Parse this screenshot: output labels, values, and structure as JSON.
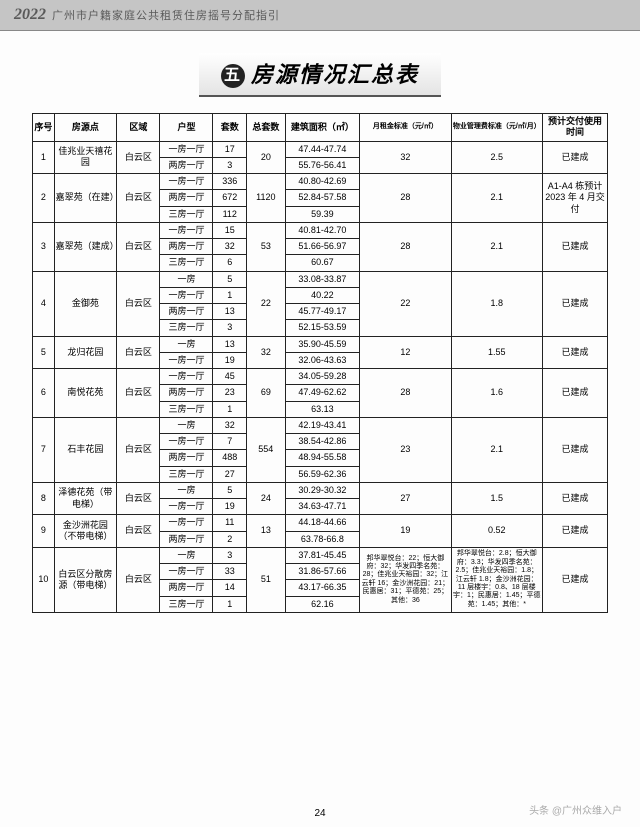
{
  "header": {
    "year": "2022",
    "text": "广州市户籍家庭公共租赁住房摇号分配指引"
  },
  "title": {
    "circle": "五",
    "text": "房源情况汇总表"
  },
  "columns": [
    "序号",
    "房源点",
    "区域",
    "户型",
    "套数",
    "总套数",
    "建筑面积（㎡）",
    "月租金标准（元/㎡）",
    "物业管理费标准（元/㎡/月）",
    "预计交付使用时间"
  ],
  "rows": [
    {
      "idx": "1",
      "loc": "佳兆业天禧花园",
      "area": "白云区",
      "types": [
        {
          "t": "一房一厅",
          "c": "17",
          "s": "47.44-47.74"
        },
        {
          "t": "两房一厅",
          "c": "3",
          "s": "55.76-56.41"
        }
      ],
      "total": "20",
      "rent": "32",
      "fee": "2.5",
      "time": "已建成"
    },
    {
      "idx": "2",
      "loc": "嘉翠苑（在建）",
      "area": "白云区",
      "types": [
        {
          "t": "一房一厅",
          "c": "336",
          "s": "40.80-42.69"
        },
        {
          "t": "两房一厅",
          "c": "672",
          "s": "52.84-57.58"
        },
        {
          "t": "三房一厅",
          "c": "112",
          "s": "59.39"
        }
      ],
      "total": "1120",
      "rent": "28",
      "fee": "2.1",
      "time": "A1-A4 栋预计 2023 年 4 月交付"
    },
    {
      "idx": "3",
      "loc": "嘉翠苑（建成）",
      "area": "白云区",
      "types": [
        {
          "t": "一房一厅",
          "c": "15",
          "s": "40.81-42.70"
        },
        {
          "t": "两房一厅",
          "c": "32",
          "s": "51.66-56.97"
        },
        {
          "t": "三房一厅",
          "c": "6",
          "s": "60.67"
        }
      ],
      "total": "53",
      "rent": "28",
      "fee": "2.1",
      "time": "已建成"
    },
    {
      "idx": "4",
      "loc": "金御苑",
      "area": "白云区",
      "types": [
        {
          "t": "一房",
          "c": "5",
          "s": "33.08-33.87"
        },
        {
          "t": "一房一厅",
          "c": "1",
          "s": "40.22"
        },
        {
          "t": "两房一厅",
          "c": "13",
          "s": "45.77-49.17"
        },
        {
          "t": "三房一厅",
          "c": "3",
          "s": "52.15-53.59"
        }
      ],
      "total": "22",
      "rent": "22",
      "fee": "1.8",
      "time": "已建成"
    },
    {
      "idx": "5",
      "loc": "龙归花园",
      "area": "白云区",
      "types": [
        {
          "t": "一房",
          "c": "13",
          "s": "35.90-45.59"
        },
        {
          "t": "一房一厅",
          "c": "19",
          "s": "32.06-43.63"
        }
      ],
      "total": "32",
      "rent": "12",
      "fee": "1.55",
      "time": "已建成"
    },
    {
      "idx": "6",
      "loc": "南悦花苑",
      "area": "白云区",
      "types": [
        {
          "t": "一房一厅",
          "c": "45",
          "s": "34.05-59.28"
        },
        {
          "t": "两房一厅",
          "c": "23",
          "s": "47.49-62.62"
        },
        {
          "t": "三房一厅",
          "c": "1",
          "s": "63.13"
        }
      ],
      "total": "69",
      "rent": "28",
      "fee": "1.6",
      "time": "已建成"
    },
    {
      "idx": "7",
      "loc": "石丰花园",
      "area": "白云区",
      "types": [
        {
          "t": "一房",
          "c": "32",
          "s": "42.19-43.41"
        },
        {
          "t": "一房一厅",
          "c": "7",
          "s": "38.54-42.86"
        },
        {
          "t": "两房一厅",
          "c": "488",
          "s": "48.94-55.58"
        },
        {
          "t": "三房一厅",
          "c": "27",
          "s": "56.59-62.36"
        }
      ],
      "total": "554",
      "rent": "23",
      "fee": "2.1",
      "time": "已建成"
    },
    {
      "idx": "8",
      "loc": "泽德花苑（带电梯）",
      "area": "白云区",
      "types": [
        {
          "t": "一房",
          "c": "5",
          "s": "30.29-30.32"
        },
        {
          "t": "一房一厅",
          "c": "19",
          "s": "34.63-47.71"
        }
      ],
      "total": "24",
      "rent": "27",
      "fee": "1.5",
      "time": "已建成"
    },
    {
      "idx": "9",
      "loc": "金沙洲花园（不带电梯）",
      "area": "白云区",
      "types": [
        {
          "t": "一房一厅",
          "c": "11",
          "s": "44.18-44.66"
        },
        {
          "t": "两房一厅",
          "c": "2",
          "s": "63.78-66.8"
        }
      ],
      "total": "13",
      "rent": "19",
      "fee": "0.52",
      "time": "已建成"
    },
    {
      "idx": "10",
      "loc": "白云区分散房源（带电梯）",
      "area": "白云区",
      "types": [
        {
          "t": "一房",
          "c": "3",
          "s": "37.81-45.45"
        },
        {
          "t": "一房一厅",
          "c": "33",
          "s": "31.86-57.66"
        },
        {
          "t": "两房一厅",
          "c": "14",
          "s": "43.17-66.35"
        },
        {
          "t": "三房一厅",
          "c": "1",
          "s": "62.16"
        }
      ],
      "total": "51",
      "rent": "邦华翠悦台：22；恒大御府：32；华发四季名苑：28；佳兆业天裕园：32；江云轩 16；金沙洲花园：21；民惠居：31；平德苑：25；其他：36",
      "fee": "邦华翠悦台：2.8；恒大御府：3.3；华发四季名苑：2.5；佳兆业天裕园：1.8；江云轩 1.8；金沙洲花园：11 层楼宇：0.8、18 层楼宇：1；民惠居：1.45；平德苑：1.45；其他：*",
      "time": "已建成"
    }
  ],
  "pageNumber": "24",
  "watermark": "头条 @广州众维入户"
}
